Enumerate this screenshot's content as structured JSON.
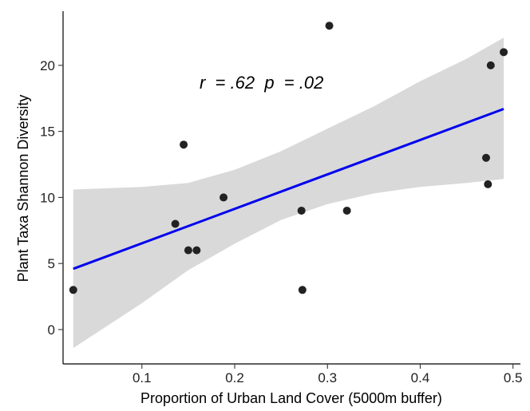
{
  "chart_data": {
    "type": "scatter",
    "xlabel": "Proportion of Urban Land Cover (5000m buffer)",
    "ylabel": "Plant Taxa Shannon Diversity",
    "annotation": "r  = .62  p  = .02",
    "xlim": [
      0.015,
      0.508
    ],
    "ylim": [
      -2.6,
      24.1
    ],
    "x_ticks": [
      0.1,
      0.2,
      0.3,
      0.4,
      0.5
    ],
    "x_tick_labels": [
      "0.1",
      "0.2",
      "0.3",
      "0.4",
      "0.5"
    ],
    "y_ticks": [
      0,
      5,
      10,
      15,
      20
    ],
    "y_tick_labels": [
      "0",
      "5",
      "10",
      "15",
      "20"
    ],
    "points": [
      {
        "x": 0.026,
        "y": 3
      },
      {
        "x": 0.136,
        "y": 8
      },
      {
        "x": 0.145,
        "y": 14
      },
      {
        "x": 0.15,
        "y": 6
      },
      {
        "x": 0.159,
        "y": 6
      },
      {
        "x": 0.188,
        "y": 10
      },
      {
        "x": 0.272,
        "y": 9
      },
      {
        "x": 0.273,
        "y": 3
      },
      {
        "x": 0.302,
        "y": 23
      },
      {
        "x": 0.321,
        "y": 9
      },
      {
        "x": 0.471,
        "y": 13
      },
      {
        "x": 0.473,
        "y": 11
      },
      {
        "x": 0.476,
        "y": 20
      },
      {
        "x": 0.49,
        "y": 21
      }
    ],
    "fit_line": {
      "x": [
        0.026,
        0.49
      ],
      "y": [
        4.6,
        16.7
      ]
    },
    "confidence_band": {
      "x": [
        0.026,
        0.1,
        0.15,
        0.2,
        0.25,
        0.3,
        0.35,
        0.4,
        0.45,
        0.49
      ],
      "upper": [
        10.6,
        10.8,
        11.1,
        12.1,
        13.5,
        15.2,
        16.9,
        18.8,
        20.5,
        22.1
      ],
      "lower": [
        -1.4,
        2.0,
        4.5,
        6.5,
        8.3,
        9.5,
        10.3,
        10.8,
        11.1,
        11.4
      ]
    },
    "colors": {
      "point": "#222222",
      "line": "#0000ee",
      "band": "#d9d9d9"
    },
    "grid": false
  }
}
